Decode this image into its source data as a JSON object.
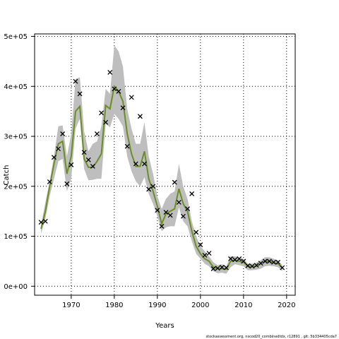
{
  "chart_data": {
    "type": "line",
    "xlabel": "Years",
    "ylabel": "Catch",
    "xlim": [
      1961.5,
      2022.0
    ],
    "ylim": [
      -18000,
      505000
    ],
    "x_ticks": [
      1970,
      1980,
      1990,
      2000,
      2010,
      2020
    ],
    "x_tick_labels": [
      "1970",
      "1980",
      "1990",
      "2000",
      "2010",
      "2020"
    ],
    "y_ticks": [
      0,
      100000,
      200000,
      300000,
      400000,
      500000
    ],
    "y_tick_labels": [
      "0e+00",
      "1e+05",
      "2e+05",
      "3e+05",
      "4e+05",
      "5e+05"
    ],
    "grid": true,
    "footer": "stockassessment.org, nscod20_combinedtdx, r12891 , git: 5b334405cda7",
    "colors": {
      "band": "#bebebe",
      "estimate_line": "#6b8e23",
      "alt_line": "#3c78c8",
      "observed": "#000000",
      "grid": "#000000"
    },
    "series": [
      {
        "kind": "band",
        "x": [
          1963,
          1964,
          1965,
          1966,
          1967,
          1968,
          1969,
          1970,
          1971,
          1972,
          1973,
          1974,
          1975,
          1976,
          1977,
          1978,
          1979,
          1980,
          1981,
          1982,
          1983,
          1984,
          1985,
          1986,
          1987,
          1988,
          1989,
          1990,
          1991,
          1992,
          1993,
          1994,
          1995,
          1996,
          1997,
          1998,
          1999,
          2000,
          2001,
          2002,
          2003,
          2004,
          2005,
          2006,
          2007,
          2008,
          2009,
          2010,
          2011,
          2012,
          2013,
          2014,
          2015,
          2016,
          2017,
          2018,
          2019
        ],
        "lower": [
          105000,
          135000,
          180000,
          215000,
          250000,
          255000,
          190000,
          215000,
          315000,
          335000,
          235000,
          212000,
          213000,
          215000,
          215000,
          325000,
          318000,
          345000,
          335000,
          320000,
          260000,
          230000,
          210000,
          200000,
          218000,
          185000,
          165000,
          140000,
          110000,
          118000,
          120000,
          120000,
          158000,
          130000,
          120000,
          90000,
          65000,
          55000,
          45000,
          40000,
          30000,
          26000,
          27000,
          25000,
          38000,
          44000,
          42000,
          40000,
          32000,
          32000,
          33000,
          35000,
          40000,
          41000,
          40000,
          38000,
          30000
        ],
        "upper": [
          122000,
          168000,
          210000,
          260000,
          320000,
          322000,
          260000,
          305000,
          415000,
          418000,
          310000,
          270000,
          285000,
          290000,
          320000,
          395000,
          385000,
          482000,
          470000,
          440000,
          355000,
          315000,
          285000,
          285000,
          328000,
          260000,
          225000,
          180000,
          155000,
          175000,
          185000,
          190000,
          245000,
          200000,
          175000,
          130000,
          100000,
          80000,
          70000,
          60000,
          48000,
          42000,
          44000,
          40000,
          60000,
          60000,
          57000,
          55000,
          45000,
          45000,
          47000,
          52000,
          58000,
          58000,
          55000,
          52000,
          42000
        ]
      },
      {
        "kind": "line",
        "name": "",
        "x": [
          1963,
          1964,
          1965,
          1966,
          1967,
          1968,
          1969,
          1970,
          1971,
          1972,
          1973,
          1974,
          1975,
          1976,
          1977,
          1978,
          1979,
          1980,
          1981,
          1982,
          1983,
          1984,
          1985,
          1986,
          1987,
          1988,
          1989,
          1990,
          1991,
          1992,
          1993,
          1994,
          1995,
          1996,
          1997,
          1998,
          1999,
          2000,
          2001,
          2002,
          2003,
          2004,
          2005,
          2006,
          2007,
          2008,
          2009,
          2010,
          2011,
          2012,
          2013,
          2014,
          2015,
          2016,
          2017,
          2018,
          2019
        ],
        "y": [
          115000,
          150000,
          200000,
          245000,
          285000,
          290000,
          225000,
          260000,
          350000,
          360000,
          255000,
          238000,
          238000,
          250000,
          265000,
          362000,
          355000,
          400000,
          390000,
          370000,
          305000,
          265000,
          240000,
          240000,
          270000,
          215000,
          190000,
          160000,
          125000,
          145000,
          150000,
          155000,
          195000,
          165000,
          150000,
          110000,
          80000,
          65000,
          55000,
          50000,
          38000,
          35000,
          35000,
          34000,
          50000,
          52000,
          50000,
          48000,
          40000,
          39000,
          40000,
          45000,
          50000,
          50000,
          47000,
          45000,
          37000
        ]
      },
      {
        "kind": "observed",
        "name": "",
        "x": [
          1963,
          1964,
          1965,
          1966,
          1967,
          1968,
          1969,
          1970,
          1971,
          1972,
          1973,
          1974,
          1975,
          1976,
          1977,
          1978,
          1979,
          1980,
          1981,
          1982,
          1983,
          1984,
          1985,
          1986,
          1987,
          1988,
          1989,
          1990,
          1991,
          1992,
          1993,
          1994,
          1995,
          1996,
          1997,
          1998,
          1999,
          2000,
          2001,
          2002,
          2003,
          2004,
          2005,
          2006,
          2007,
          2008,
          2009,
          2010,
          2011,
          2012,
          2013,
          2014,
          2015,
          2016,
          2017,
          2018,
          2019
        ],
        "y": [
          128000,
          130000,
          209000,
          258000,
          275000,
          305000,
          205000,
          243000,
          410000,
          385000,
          268000,
          253000,
          240000,
          305000,
          347000,
          328000,
          428000,
          395000,
          390000,
          357000,
          280000,
          378000,
          245000,
          340000,
          245000,
          194000,
          200000,
          152000,
          120000,
          148000,
          142000,
          208000,
          168000,
          140000,
          155000,
          185000,
          108000,
          83000,
          62000,
          66000,
          35000,
          36000,
          38000,
          37000,
          55000,
          53000,
          55000,
          50000,
          41000,
          40000,
          42000,
          46000,
          50000,
          50000,
          48000,
          48000,
          37000
        ]
      }
    ]
  }
}
